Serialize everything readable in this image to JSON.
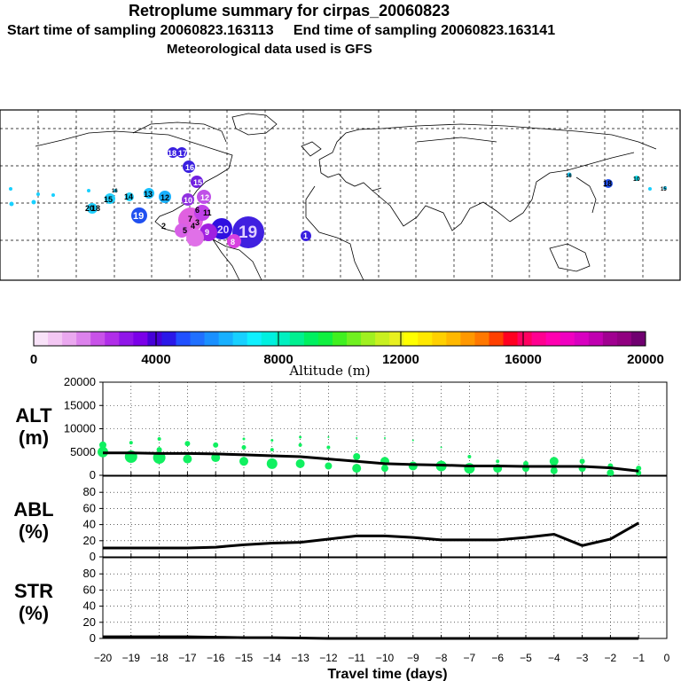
{
  "header": {
    "title": "Retroplume summary for cirpas_20060823",
    "sampling": "Start time of sampling 20060823.163113     End time of sampling 20060823.163141",
    "met": "Meteorological data used is GFS"
  },
  "colorbar": {
    "label": "Altitude (m)",
    "ticks": [
      "0",
      "4000",
      "8000",
      "12000",
      "16000",
      "20000"
    ],
    "colors": [
      "#f8e2f8",
      "#f3c7f3",
      "#eaa8ef",
      "#dc82ec",
      "#c852e8",
      "#b02ee8",
      "#9016e8",
      "#7b00e8",
      "#4600d8",
      "#2a18e8",
      "#2050ff",
      "#2070ff",
      "#1a90ff",
      "#18b0ff",
      "#18d0ff",
      "#10f0ff",
      "#00f0e0",
      "#00f0c0",
      "#00f090",
      "#00f060",
      "#10f040",
      "#40f020",
      "#70f020",
      "#a0f020",
      "#c8f020",
      "#e8f020",
      "#ffff00",
      "#ffe800",
      "#ffd000",
      "#ffb800",
      "#ff9800",
      "#ff7800",
      "#ff4000",
      "#ff0020",
      "#ff0060",
      "#ff0090",
      "#ff00b0",
      "#f000c0",
      "#d800c0",
      "#c000b0",
      "#a00090",
      "#900080",
      "#700070"
    ]
  },
  "map": {
    "labels_pink": [
      "12",
      "11",
      "7",
      "5",
      "4",
      "3",
      "2",
      "6"
    ],
    "labels_purple": [
      "19",
      "20",
      "18",
      "17",
      "16",
      "15",
      "10",
      "9",
      "8",
      "1"
    ],
    "labels_cyan": [
      "15",
      "14",
      "13",
      "12",
      "16",
      "19",
      "20",
      "18"
    ],
    "labels_asia": [
      "18",
      "10",
      "16",
      "15"
    ]
  },
  "chart_data": [
    {
      "type": "scatter",
      "title": "ALT (m)",
      "ylabel": "ALT (m)",
      "ylim": [
        0,
        20000
      ],
      "yticks": [
        "20000",
        "15000",
        "10000",
        "5000",
        "0"
      ],
      "line_x": [
        -20,
        -19,
        -18,
        -17,
        -16,
        -15,
        -14,
        -13,
        -12,
        -11,
        -10,
        -9,
        -8,
        -7,
        -6,
        -5,
        -4,
        -3,
        -2,
        -1
      ],
      "line_y": [
        4800,
        4800,
        4700,
        4700,
        4600,
        4400,
        4200,
        4000,
        3500,
        3000,
        2500,
        2300,
        2200,
        2000,
        2000,
        1900,
        1900,
        1900,
        1600,
        900
      ],
      "points": [
        {
          "x": -20,
          "y": 6500,
          "r": 4
        },
        {
          "x": -20,
          "y": 5000,
          "r": 6
        },
        {
          "x": -19,
          "y": 7000,
          "r": 2
        },
        {
          "x": -19,
          "y": 4000,
          "r": 7
        },
        {
          "x": -18,
          "y": 7800,
          "r": 2
        },
        {
          "x": -18,
          "y": 5500,
          "r": 3
        },
        {
          "x": -18,
          "y": 3800,
          "r": 7
        },
        {
          "x": -17,
          "y": 6800,
          "r": 3
        },
        {
          "x": -17,
          "y": 3500,
          "r": 5
        },
        {
          "x": -16,
          "y": 6500,
          "r": 3
        },
        {
          "x": -16,
          "y": 3800,
          "r": 5
        },
        {
          "x": -15,
          "y": 7800,
          "r": 1.5
        },
        {
          "x": -15,
          "y": 6000,
          "r": 2.5
        },
        {
          "x": -15,
          "y": 3000,
          "r": 5
        },
        {
          "x": -14,
          "y": 7500,
          "r": 1.5
        },
        {
          "x": -14,
          "y": 5500,
          "r": 2
        },
        {
          "x": -14,
          "y": 2500,
          "r": 6
        },
        {
          "x": -13,
          "y": 8200,
          "r": 1.5
        },
        {
          "x": -13,
          "y": 6500,
          "r": 2
        },
        {
          "x": -13,
          "y": 2500,
          "r": 5
        },
        {
          "x": -12,
          "y": 8200,
          "r": 1
        },
        {
          "x": -12,
          "y": 6000,
          "r": 2
        },
        {
          "x": -12,
          "y": 2000,
          "r": 4
        },
        {
          "x": -11,
          "y": 8000,
          "r": 1
        },
        {
          "x": -11,
          "y": 4000,
          "r": 4
        },
        {
          "x": -11,
          "y": 1500,
          "r": 5
        },
        {
          "x": -10,
          "y": 8000,
          "r": 1
        },
        {
          "x": -10,
          "y": 3000,
          "r": 5
        },
        {
          "x": -10,
          "y": 1500,
          "r": 4
        },
        {
          "x": -9,
          "y": 7500,
          "r": 1
        },
        {
          "x": -9,
          "y": 2000,
          "r": 5
        },
        {
          "x": -8,
          "y": 6000,
          "r": 1
        },
        {
          "x": -8,
          "y": 2000,
          "r": 6
        },
        {
          "x": -7,
          "y": 4000,
          "r": 2
        },
        {
          "x": -7,
          "y": 1500,
          "r": 6
        },
        {
          "x": -6,
          "y": 3000,
          "r": 2
        },
        {
          "x": -6,
          "y": 1500,
          "r": 5
        },
        {
          "x": -5,
          "y": 2500,
          "r": 3
        },
        {
          "x": -5,
          "y": 1500,
          "r": 4
        },
        {
          "x": -4,
          "y": 3000,
          "r": 5
        },
        {
          "x": -4,
          "y": 1000,
          "r": 4
        },
        {
          "x": -3,
          "y": 3000,
          "r": 3
        },
        {
          "x": -3,
          "y": 1500,
          "r": 4
        },
        {
          "x": -2,
          "y": 2000,
          "r": 3
        },
        {
          "x": -2,
          "y": 500,
          "r": 4
        },
        {
          "x": -1,
          "y": 1500,
          "r": 3
        },
        {
          "x": -1,
          "y": 500,
          "r": 3
        }
      ]
    },
    {
      "type": "line",
      "title": "ABL (%)",
      "ylabel": "ABL (%)",
      "ylim": [
        0,
        100
      ],
      "yticks": [
        "80",
        "60",
        "40",
        "20",
        "0"
      ],
      "x": [
        -20,
        -19,
        -18,
        -17,
        -16,
        -15,
        -14,
        -13,
        -12,
        -11,
        -10,
        -9,
        -8,
        -7,
        -6,
        -5,
        -4,
        -3,
        -2,
        -1
      ],
      "y": [
        11,
        11,
        11,
        11,
        12,
        15,
        17,
        18,
        22,
        26,
        26,
        24,
        21,
        21,
        21,
        24,
        28,
        14,
        22,
        42
      ]
    },
    {
      "type": "line",
      "title": "STR (%)",
      "ylabel": "STR (%)",
      "ylim": [
        0,
        100
      ],
      "yticks": [
        "80",
        "60",
        "40",
        "20",
        "0"
      ],
      "x": [
        -20,
        -19,
        -18,
        -17,
        -16,
        -15,
        -14,
        -13,
        -12,
        -11,
        -10,
        -9,
        -8,
        -7,
        -6,
        -5,
        -4,
        -3,
        -2,
        -1
      ],
      "y": [
        2,
        2,
        2,
        2,
        1.5,
        1,
        1,
        0.5,
        0,
        0,
        0,
        0,
        0,
        0,
        0,
        0,
        0,
        0,
        0,
        0
      ]
    }
  ],
  "xaxis": {
    "label": "Travel time (days)",
    "ticks": [
      "−20",
      "−19",
      "−18",
      "−17",
      "−16",
      "−15",
      "−14",
      "−13",
      "−12",
      "−11",
      "−10",
      "−9",
      "−8",
      "−7",
      "−6",
      "−5",
      "−4",
      "−3",
      "−2",
      "−1",
      "0"
    ]
  }
}
